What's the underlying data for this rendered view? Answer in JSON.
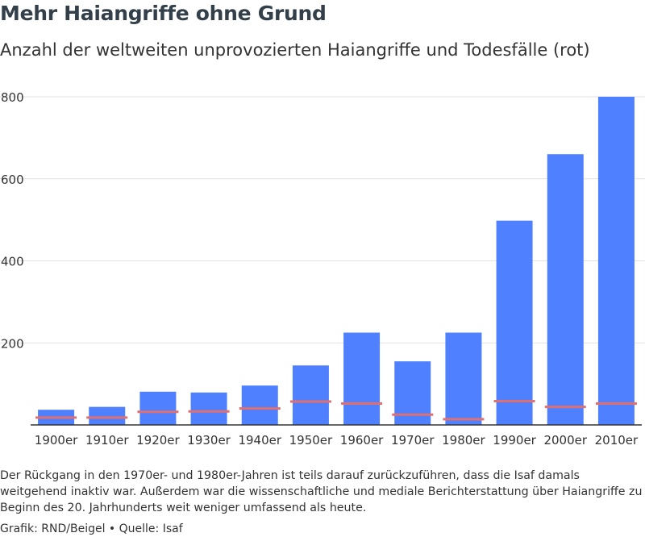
{
  "title": "Mehr Haiangriffe ohne Grund",
  "subtitle": "Anzahl der weltweiten unprovozierten Haiangriffe und Todesfälle (rot)",
  "note": "Der Rückgang in den 1970er- und 1980er-Jahren ist teils darauf zurückzuführen, dass die Isaf damals weitgehend inaktiv war. Außerdem war die wissenschaftliche und mediale Berichterstattung über Haiangriffe zu Beginn des 20. Jahrhunderts weit weniger umfassend als heute.",
  "credit": "Grafik: RND/Beigel • Quelle: Isaf",
  "colors": {
    "bar": "#4f80ff",
    "deaths": "#e07070",
    "grid": "#e2e2e2",
    "axis": "#333333"
  },
  "chart_data": {
    "type": "bar",
    "title": "Mehr Haiangriffe ohne Grund",
    "subtitle": "Anzahl der weltweiten unprovozierten Haiangriffe und Todesfälle (rot)",
    "xlabel": "",
    "ylabel": "",
    "ylim": [
      0,
      800
    ],
    "yticks": [
      200,
      400,
      600,
      800
    ],
    "grid": true,
    "categories": [
      "1900er",
      "1910er",
      "1920er",
      "1930er",
      "1940er",
      "1950er",
      "1960er",
      "1970er",
      "1980er",
      "1990er",
      "2000er",
      "2010er"
    ],
    "series": [
      {
        "name": "Haiangriffe",
        "type": "bar",
        "values": [
          37,
          44,
          81,
          79,
          96,
          145,
          225,
          155,
          225,
          498,
          660,
          800
        ]
      },
      {
        "name": "Todesfälle",
        "type": "marker",
        "values": [
          18,
          18,
          32,
          33,
          40,
          57,
          52,
          25,
          14,
          58,
          44,
          52
        ]
      }
    ]
  }
}
